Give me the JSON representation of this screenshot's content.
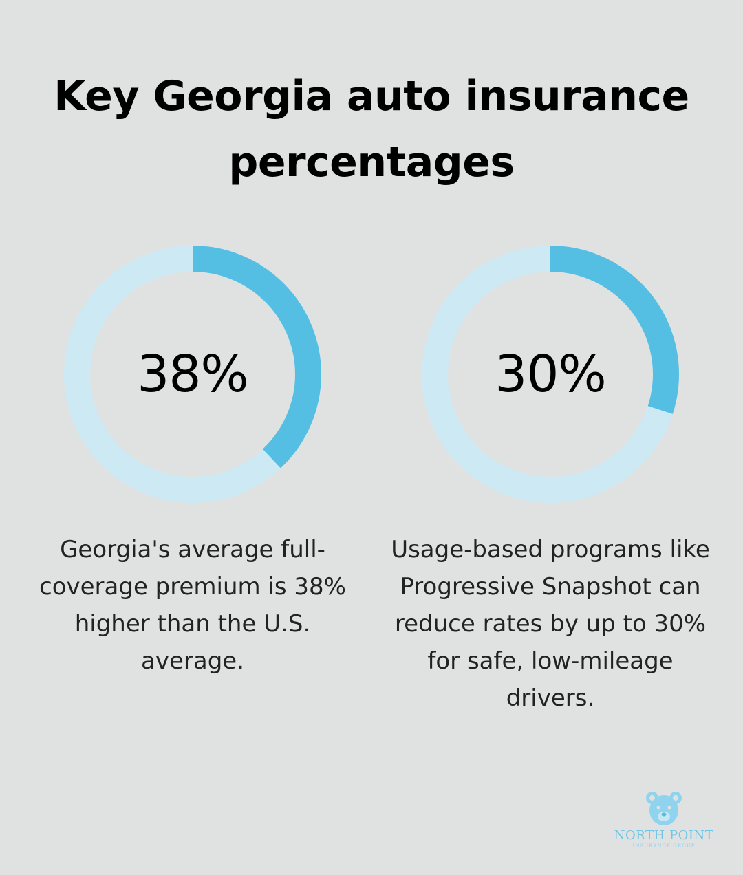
{
  "title": "Key Georgia auto insurance percentages",
  "colors": {
    "background": "#e0e2e2",
    "ring_track": "#cce9f4",
    "ring_fill": "#55bfe3"
  },
  "chart_data": [
    {
      "type": "pie",
      "title": "",
      "value": 38,
      "label": "38%",
      "caption": "Georgia's average full-coverage premium is 38% higher than the U.S. average."
    },
    {
      "type": "pie",
      "title": "",
      "value": 30,
      "label": "30%",
      "caption": "Usage-based programs like Progressive Snapshot can reduce rates by up to 30% for safe, low-mileage drivers."
    }
  ],
  "logo": {
    "name": "NORTH POINT",
    "subtitle": "INSURANCE GROUP",
    "icon": "bear-icon"
  }
}
